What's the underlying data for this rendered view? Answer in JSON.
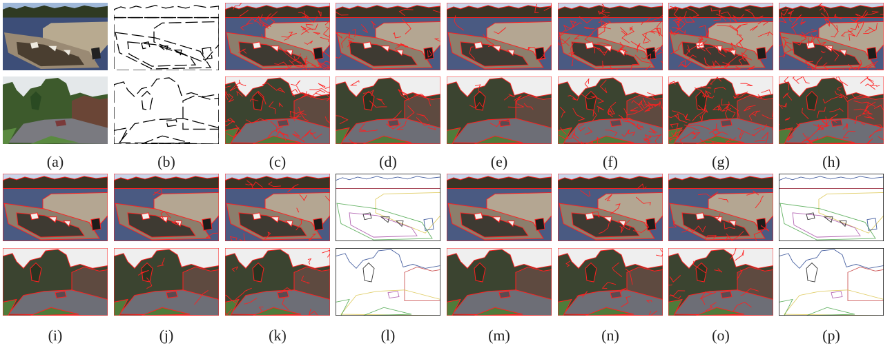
{
  "panels": [
    {
      "label": "(a)"
    },
    {
      "label": "(b)"
    },
    {
      "label": "(c)"
    },
    {
      "label": "(d)"
    },
    {
      "label": "(e)"
    },
    {
      "label": "(f)"
    },
    {
      "label": "(g)"
    },
    {
      "label": "(h)"
    },
    {
      "label": "(i)"
    },
    {
      "label": "(j)"
    },
    {
      "label": "(k)"
    },
    {
      "label": "(l)"
    },
    {
      "label": "(m)"
    },
    {
      "label": "(n)"
    },
    {
      "label": "(o)"
    },
    {
      "label": "(p)"
    }
  ]
}
